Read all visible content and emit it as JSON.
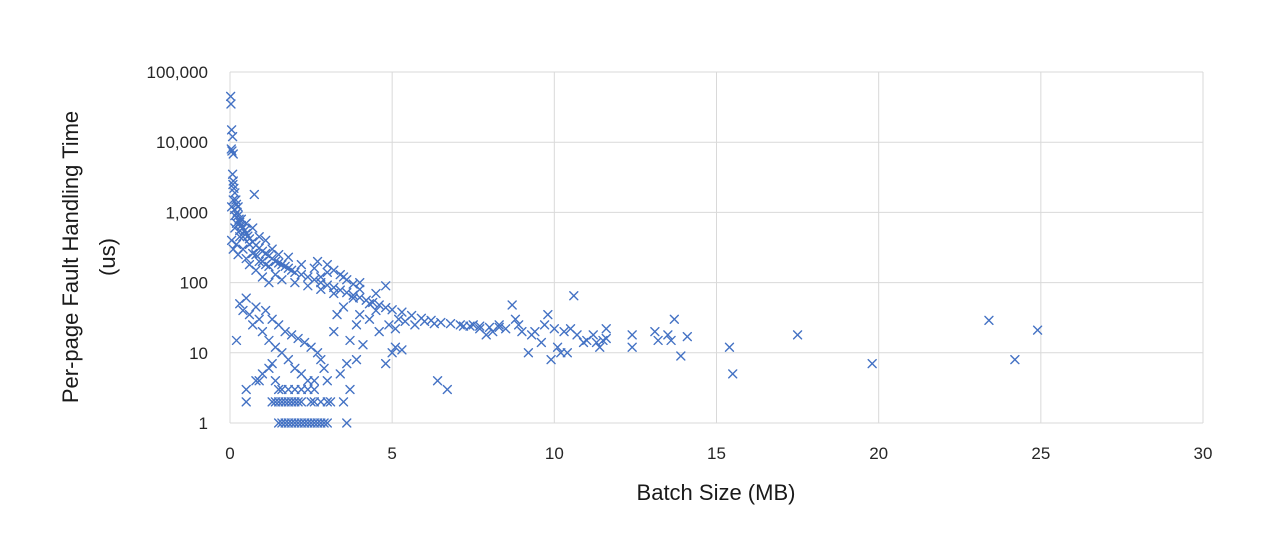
{
  "chart_data": {
    "type": "scatter",
    "title": "",
    "xlabel": "Batch Size (MB)",
    "ylabel_lines": [
      "Per-page Fault Handling Time",
      "(us)"
    ],
    "xlim": [
      0,
      30
    ],
    "ylim": [
      1,
      100000
    ],
    "y_scale": "log",
    "x_ticks": [
      0,
      5,
      10,
      15,
      20,
      25,
      30
    ],
    "x_tick_labels": [
      "0",
      "5",
      "10",
      "15",
      "20",
      "25",
      "30"
    ],
    "y_ticks": [
      1,
      10,
      100,
      1000,
      10000,
      100000
    ],
    "y_tick_labels": [
      "1",
      "10",
      "100",
      "1,000",
      "10,000",
      "100,000"
    ],
    "grid": true,
    "legend": "none",
    "marker": "x",
    "color": "#4472C4",
    "points": [
      [
        0.02,
        45000
      ],
      [
        0.03,
        35000
      ],
      [
        0.05,
        15000
      ],
      [
        0.08,
        12000
      ],
      [
        0.06,
        7500
      ],
      [
        0.1,
        6800
      ],
      [
        0.04,
        8000
      ],
      [
        0.08,
        3500
      ],
      [
        0.1,
        2800
      ],
      [
        0.12,
        2200
      ],
      [
        0.15,
        1900
      ],
      [
        0.18,
        1500
      ],
      [
        0.2,
        1300
      ],
      [
        0.14,
        1100
      ],
      [
        0.09,
        2500
      ],
      [
        0.22,
        1000
      ],
      [
        0.25,
        900
      ],
      [
        0.28,
        800
      ],
      [
        0.3,
        720
      ],
      [
        0.35,
        650
      ],
      [
        0.4,
        600
      ],
      [
        0.45,
        550
      ],
      [
        0.5,
        500
      ],
      [
        0.55,
        460
      ],
      [
        0.6,
        420
      ],
      [
        0.7,
        380
      ],
      [
        0.8,
        340
      ],
      [
        0.9,
        310
      ],
      [
        1.0,
        280
      ],
      [
        1.1,
        260
      ],
      [
        1.2,
        240
      ],
      [
        1.3,
        220
      ],
      [
        1.4,
        200
      ],
      [
        1.5,
        190
      ],
      [
        1.6,
        180
      ],
      [
        1.7,
        170
      ],
      [
        1.8,
        160
      ],
      [
        1.9,
        150
      ],
      [
        2.0,
        140
      ],
      [
        2.2,
        130
      ],
      [
        2.4,
        120
      ],
      [
        2.6,
        110
      ],
      [
        2.8,
        100
      ],
      [
        3.0,
        92
      ],
      [
        3.2,
        85
      ],
      [
        3.4,
        78
      ],
      [
        3.6,
        72
      ],
      [
        3.8,
        66
      ],
      [
        4.0,
        61
      ],
      [
        4.2,
        56
      ],
      [
        4.4,
        52
      ],
      [
        4.6,
        48
      ],
      [
        4.8,
        44
      ],
      [
        5.0,
        41
      ],
      [
        5.3,
        38
      ],
      [
        5.6,
        34
      ],
      [
        5.9,
        31
      ],
      [
        6.2,
        29
      ],
      [
        6.5,
        27
      ],
      [
        6.8,
        26
      ],
      [
        7.1,
        25
      ],
      [
        7.4,
        24
      ],
      [
        7.7,
        24
      ],
      [
        8.0,
        23
      ],
      [
        8.3,
        23
      ],
      [
        0.05,
        1200
      ],
      [
        0.1,
        1500
      ],
      [
        0.15,
        900
      ],
      [
        0.2,
        700
      ],
      [
        0.25,
        1200
      ],
      [
        0.3,
        550
      ],
      [
        0.35,
        800
      ],
      [
        0.4,
        450
      ],
      [
        0.5,
        700
      ],
      [
        0.6,
        350
      ],
      [
        0.7,
        600
      ],
      [
        0.8,
        250
      ],
      [
        0.9,
        450
      ],
      [
        1.0,
        200
      ],
      [
        1.1,
        400
      ],
      [
        1.2,
        170
      ],
      [
        1.3,
        300
      ],
      [
        1.4,
        130
      ],
      [
        1.5,
        250
      ],
      [
        1.6,
        110
      ],
      [
        1.8,
        230
      ],
      [
        2.0,
        100
      ],
      [
        2.2,
        180
      ],
      [
        2.4,
        90
      ],
      [
        2.6,
        160
      ],
      [
        2.8,
        80
      ],
      [
        3.0,
        140
      ],
      [
        3.2,
        70
      ],
      [
        3.5,
        120
      ],
      [
        3.8,
        60
      ],
      [
        4.0,
        100
      ],
      [
        4.3,
        50
      ],
      [
        0.75,
        1800
      ],
      [
        0.05,
        400
      ],
      [
        0.1,
        300
      ],
      [
        0.15,
        600
      ],
      [
        0.2,
        350
      ],
      [
        0.25,
        250
      ],
      [
        0.3,
        450
      ],
      [
        0.4,
        300
      ],
      [
        0.5,
        220
      ],
      [
        0.6,
        180
      ],
      [
        0.7,
        260
      ],
      [
        0.8,
        150
      ],
      [
        0.9,
        200
      ],
      [
        1.0,
        120
      ],
      [
        1.1,
        180
      ],
      [
        1.2,
        100
      ],
      [
        0.3,
        50
      ],
      [
        0.4,
        40
      ],
      [
        0.5,
        60
      ],
      [
        0.6,
        35
      ],
      [
        0.7,
        25
      ],
      [
        0.8,
        45
      ],
      [
        0.9,
        30
      ],
      [
        1.0,
        20
      ],
      [
        1.1,
        40
      ],
      [
        1.2,
        15
      ],
      [
        1.3,
        30
      ],
      [
        1.4,
        12
      ],
      [
        1.5,
        25
      ],
      [
        1.6,
        10
      ],
      [
        1.7,
        20
      ],
      [
        1.8,
        8
      ],
      [
        1.9,
        18
      ],
      [
        2.0,
        6
      ],
      [
        2.1,
        16
      ],
      [
        2.2,
        5
      ],
      [
        2.3,
        14
      ],
      [
        2.4,
        4
      ],
      [
        2.5,
        12
      ],
      [
        2.6,
        3
      ],
      [
        2.7,
        10
      ],
      [
        2.8,
        8
      ],
      [
        2.9,
        6
      ],
      [
        0.2,
        15
      ],
      [
        0.5,
        3
      ],
      [
        0.5,
        2
      ],
      [
        0.8,
        4
      ],
      [
        0.9,
        4
      ],
      [
        1.0,
        5
      ],
      [
        1.2,
        6
      ],
      [
        1.3,
        7
      ],
      [
        1.4,
        4
      ],
      [
        1.5,
        3
      ],
      [
        1.3,
        2
      ],
      [
        1.4,
        2
      ],
      [
        1.5,
        2
      ],
      [
        1.6,
        2
      ],
      [
        1.7,
        2
      ],
      [
        1.8,
        2
      ],
      [
        1.9,
        2
      ],
      [
        2.0,
        2
      ],
      [
        2.1,
        2
      ],
      [
        2.2,
        2
      ],
      [
        2.5,
        2
      ],
      [
        2.6,
        2
      ],
      [
        2.8,
        2
      ],
      [
        3.0,
        2
      ],
      [
        3.1,
        2
      ],
      [
        3.5,
        2
      ],
      [
        1.5,
        1
      ],
      [
        1.6,
        1
      ],
      [
        1.7,
        1
      ],
      [
        1.8,
        1
      ],
      [
        1.9,
        1
      ],
      [
        2.0,
        1
      ],
      [
        2.1,
        1
      ],
      [
        2.2,
        1
      ],
      [
        2.3,
        1
      ],
      [
        2.4,
        1
      ],
      [
        2.5,
        1
      ],
      [
        2.6,
        1
      ],
      [
        2.7,
        1
      ],
      [
        2.8,
        1
      ],
      [
        2.9,
        1
      ],
      [
        3.0,
        1
      ],
      [
        3.6,
        1
      ],
      [
        1.6,
        3
      ],
      [
        1.8,
        3
      ],
      [
        2.0,
        3
      ],
      [
        2.2,
        3
      ],
      [
        2.4,
        3
      ],
      [
        2.6,
        4
      ],
      [
        3.0,
        4
      ],
      [
        3.4,
        5
      ],
      [
        3.6,
        7
      ],
      [
        3.7,
        3
      ],
      [
        3.9,
        8
      ],
      [
        4.1,
        13
      ],
      [
        4.3,
        30
      ],
      [
        4.5,
        40
      ],
      [
        4.8,
        7
      ],
      [
        5.0,
        10
      ],
      [
        5.1,
        12
      ],
      [
        5.3,
        11
      ],
      [
        3.2,
        20
      ],
      [
        3.3,
        35
      ],
      [
        3.5,
        45
      ],
      [
        3.7,
        15
      ],
      [
        3.9,
        25
      ],
      [
        4.0,
        35
      ],
      [
        4.6,
        20
      ],
      [
        4.9,
        25
      ],
      [
        5.1,
        22
      ],
      [
        5.2,
        30
      ],
      [
        5.4,
        28
      ],
      [
        5.7,
        25
      ],
      [
        6.0,
        28
      ],
      [
        6.3,
        26
      ],
      [
        6.4,
        4
      ],
      [
        6.7,
        3
      ],
      [
        2.7,
        200
      ],
      [
        2.8,
        120
      ],
      [
        3.0,
        180
      ],
      [
        3.2,
        150
      ],
      [
        3.4,
        130
      ],
      [
        3.6,
        110
      ],
      [
        3.8,
        95
      ],
      [
        4.0,
        80
      ],
      [
        4.5,
        70
      ],
      [
        4.8,
        90
      ],
      [
        7.2,
        24
      ],
      [
        7.5,
        25
      ],
      [
        7.7,
        22
      ],
      [
        7.9,
        18
      ],
      [
        8.1,
        20
      ],
      [
        8.3,
        25
      ],
      [
        8.5,
        22
      ],
      [
        8.7,
        48
      ],
      [
        8.8,
        30
      ],
      [
        8.9,
        25
      ],
      [
        9.0,
        20
      ],
      [
        9.2,
        10
      ],
      [
        9.3,
        18
      ],
      [
        9.4,
        20
      ],
      [
        9.6,
        14
      ],
      [
        9.7,
        25
      ],
      [
        9.8,
        35
      ],
      [
        9.9,
        8
      ],
      [
        10.0,
        22
      ],
      [
        10.1,
        12
      ],
      [
        10.2,
        10
      ],
      [
        10.3,
        20
      ],
      [
        10.4,
        10
      ],
      [
        10.5,
        22
      ],
      [
        10.6,
        65
      ],
      [
        10.7,
        18
      ],
      [
        10.9,
        14
      ],
      [
        11.0,
        15
      ],
      [
        11.2,
        18
      ],
      [
        11.3,
        14
      ],
      [
        11.4,
        12
      ],
      [
        11.5,
        15
      ],
      [
        11.6,
        22
      ],
      [
        11.6,
        16
      ],
      [
        12.4,
        18
      ],
      [
        12.4,
        12
      ],
      [
        13.1,
        20
      ],
      [
        13.2,
        15
      ],
      [
        13.5,
        18
      ],
      [
        13.7,
        30
      ],
      [
        13.6,
        15
      ],
      [
        13.9,
        9
      ],
      [
        14.1,
        17
      ],
      [
        15.4,
        12
      ],
      [
        15.5,
        5
      ],
      [
        17.5,
        18
      ],
      [
        19.8,
        7
      ],
      [
        23.4,
        29
      ],
      [
        24.2,
        8
      ],
      [
        24.9,
        21
      ]
    ]
  }
}
